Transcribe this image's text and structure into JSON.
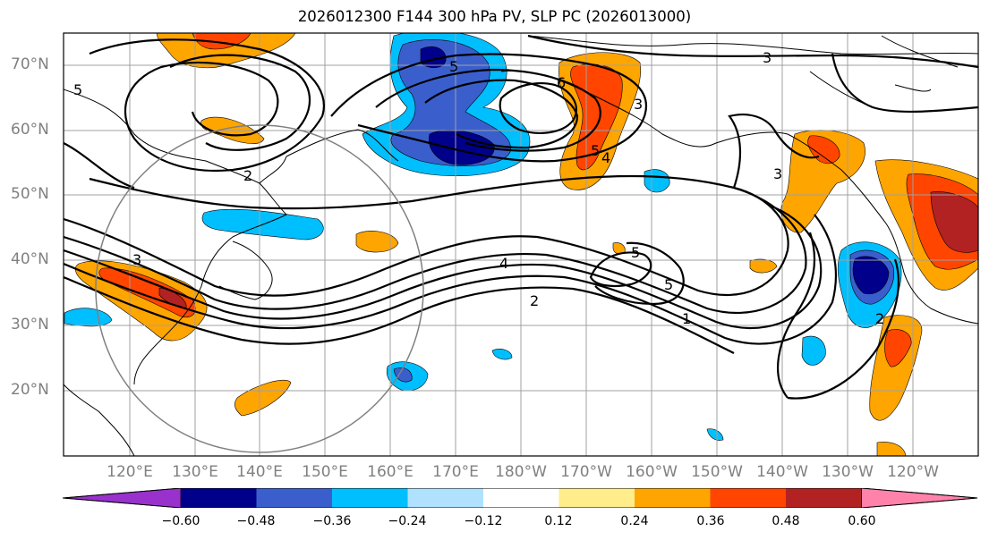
{
  "title": "2026012300 F144 300 hPa PV, SLP PC (2026013000)",
  "lat_labels": [
    "70°N",
    "60°N",
    "50°N",
    "40°N",
    "30°N",
    "20°N"
  ],
  "lon_labels": [
    "120°E",
    "130°E",
    "140°E",
    "150°E",
    "160°E",
    "170°E",
    "180°W",
    "170°W",
    "160°W",
    "150°W",
    "140°W",
    "130°W",
    "120°W"
  ],
  "colorbar": {
    "ticks": [
      "−0.60",
      "−0.48",
      "−0.36",
      "−0.24",
      "−0.12",
      "0.12",
      "0.24",
      "0.36",
      "0.48",
      "0.60"
    ],
    "colors": [
      "#9932cc",
      "#00008b",
      "#3a5fcd",
      "#00bfff",
      "#b0e2ff",
      "#ffffff",
      "#ffec8b",
      "#ffa500",
      "#ff4500",
      "#b22222",
      "#ff82ab"
    ]
  },
  "contour_labels": [
    "3",
    "5",
    "6",
    "3",
    "5",
    "4",
    "2",
    "3",
    "5",
    "5",
    "4",
    "2",
    "1",
    "2",
    "3",
    "5"
  ]
}
